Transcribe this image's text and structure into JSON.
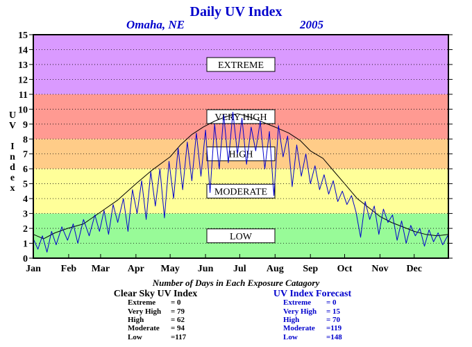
{
  "chart_data": {
    "type": "line",
    "title": "Daily UV Index",
    "subtitle_location": "Omaha, NE",
    "subtitle_year": "2005",
    "ylabel": "UV Index",
    "ylim": [
      0,
      15
    ],
    "yticks": [
      0,
      1,
      2,
      3,
      4,
      5,
      6,
      7,
      8,
      9,
      10,
      11,
      12,
      13,
      14,
      15
    ],
    "xlim": [
      1,
      365
    ],
    "months": [
      "Jan",
      "Feb",
      "Mar",
      "Apr",
      "May",
      "Jun",
      "Jul",
      "Aug",
      "Sep",
      "Oct",
      "Nov",
      "Dec"
    ],
    "month_start_day": [
      1,
      32,
      60,
      91,
      121,
      152,
      182,
      213,
      244,
      274,
      305,
      335
    ],
    "grid": "horizontal-dotted",
    "bands": [
      {
        "label": "LOW",
        "from": 0,
        "to": 3,
        "color": "#98fb98"
      },
      {
        "label": "MODERATE",
        "from": 3,
        "to": 6,
        "color": "#ffff99"
      },
      {
        "label": "HIGH",
        "from": 6,
        "to": 8,
        "color": "#ffcc88"
      },
      {
        "label": "VERY HIGH",
        "from": 8,
        "to": 11,
        "color": "#ff9a92"
      },
      {
        "label": "EXTREME",
        "from": 11,
        "to": 15,
        "color": "#da9aff"
      }
    ],
    "series": [
      {
        "name": "Clear Sky UV Index",
        "color": "#000000",
        "points": [
          [
            1,
            1.6
          ],
          [
            10,
            1.3
          ],
          [
            20,
            1.7
          ],
          [
            31,
            2.0
          ],
          [
            45,
            2.3
          ],
          [
            60,
            3.1
          ],
          [
            75,
            3.9
          ],
          [
            91,
            5.0
          ],
          [
            105,
            5.9
          ],
          [
            121,
            6.8
          ],
          [
            130,
            7.6
          ],
          [
            140,
            8.3
          ],
          [
            150,
            8.8
          ],
          [
            160,
            9.2
          ],
          [
            170,
            9.5
          ],
          [
            180,
            9.7
          ],
          [
            190,
            9.5
          ],
          [
            200,
            9.2
          ],
          [
            213,
            8.8
          ],
          [
            225,
            8.4
          ],
          [
            235,
            7.9
          ],
          [
            244,
            7.2
          ],
          [
            255,
            6.7
          ],
          [
            265,
            5.8
          ],
          [
            274,
            5.0
          ],
          [
            285,
            4.0
          ],
          [
            295,
            3.4
          ],
          [
            305,
            2.8
          ],
          [
            315,
            2.4
          ],
          [
            325,
            2.1
          ],
          [
            335,
            1.8
          ],
          [
            345,
            1.6
          ],
          [
            355,
            1.5
          ],
          [
            365,
            1.6
          ]
        ]
      },
      {
        "name": "UV Index Forecast",
        "color": "#0000cc",
        "points": [
          [
            1,
            1.3
          ],
          [
            5,
            0.6
          ],
          [
            9,
            1.5
          ],
          [
            13,
            0.4
          ],
          [
            17,
            1.8
          ],
          [
            21,
            0.9
          ],
          [
            26,
            2.1
          ],
          [
            31,
            1.2
          ],
          [
            36,
            2.3
          ],
          [
            40,
            1.0
          ],
          [
            45,
            2.6
          ],
          [
            50,
            1.5
          ],
          [
            55,
            2.9
          ],
          [
            59,
            1.8
          ],
          [
            63,
            3.2
          ],
          [
            67,
            1.6
          ],
          [
            71,
            3.6
          ],
          [
            75,
            2.4
          ],
          [
            80,
            4.0
          ],
          [
            84,
            1.8
          ],
          [
            88,
            4.6
          ],
          [
            92,
            3.0
          ],
          [
            96,
            5.2
          ],
          [
            100,
            2.6
          ],
          [
            104,
            5.8
          ],
          [
            108,
            3.5
          ],
          [
            112,
            6.0
          ],
          [
            116,
            2.7
          ],
          [
            120,
            6.5
          ],
          [
            124,
            4.0
          ],
          [
            128,
            7.4
          ],
          [
            132,
            4.6
          ],
          [
            136,
            7.8
          ],
          [
            140,
            5.2
          ],
          [
            144,
            8.4
          ],
          [
            148,
            5.5
          ],
          [
            152,
            8.6
          ],
          [
            156,
            4.4
          ],
          [
            160,
            9.0
          ],
          [
            164,
            6.0
          ],
          [
            168,
            9.6
          ],
          [
            172,
            6.4
          ],
          [
            176,
            9.8
          ],
          [
            180,
            7.0
          ],
          [
            184,
            9.4
          ],
          [
            188,
            6.3
          ],
          [
            192,
            8.8
          ],
          [
            196,
            7.2
          ],
          [
            200,
            9.2
          ],
          [
            204,
            6.0
          ],
          [
            208,
            8.5
          ],
          [
            212,
            4.2
          ],
          [
            216,
            8.9
          ],
          [
            220,
            6.8
          ],
          [
            224,
            8.2
          ],
          [
            228,
            4.8
          ],
          [
            232,
            7.6
          ],
          [
            236,
            5.5
          ],
          [
            240,
            7.0
          ],
          [
            244,
            5.0
          ],
          [
            248,
            6.2
          ],
          [
            252,
            4.6
          ],
          [
            256,
            5.6
          ],
          [
            260,
            4.3
          ],
          [
            264,
            5.2
          ],
          [
            268,
            3.8
          ],
          [
            272,
            4.5
          ],
          [
            276,
            3.6
          ],
          [
            280,
            4.2
          ],
          [
            284,
            3.1
          ],
          [
            288,
            1.4
          ],
          [
            292,
            3.8
          ],
          [
            296,
            2.6
          ],
          [
            300,
            3.5
          ],
          [
            304,
            1.6
          ],
          [
            308,
            3.3
          ],
          [
            312,
            2.4
          ],
          [
            316,
            2.9
          ],
          [
            320,
            1.2
          ],
          [
            324,
            2.5
          ],
          [
            328,
            1.0
          ],
          [
            332,
            2.2
          ],
          [
            336,
            1.5
          ],
          [
            340,
            2.0
          ],
          [
            344,
            0.8
          ],
          [
            348,
            1.9
          ],
          [
            352,
            1.1
          ],
          [
            356,
            1.7
          ],
          [
            360,
            0.9
          ],
          [
            365,
            1.6
          ]
        ]
      }
    ]
  },
  "counts_caption": "Number of Days in Each Exposure Catagory",
  "summary": [
    {
      "title": "Clear Sky UV Index",
      "color": "#000000",
      "rows": [
        {
          "label": "Extreme",
          "value": "=   0"
        },
        {
          "label": "Very High",
          "value": "= 79"
        },
        {
          "label": "High",
          "value": "= 62"
        },
        {
          "label": "Moderate",
          "value": "= 94"
        },
        {
          "label": "Low",
          "value": "=117"
        }
      ]
    },
    {
      "title": "UV Index Forecast",
      "color": "#0000cc",
      "rows": [
        {
          "label": "Extreme",
          "value": "=   0"
        },
        {
          "label": "Very High",
          "value": "= 15"
        },
        {
          "label": "High",
          "value": "= 70"
        },
        {
          "label": "Moderate",
          "value": "=119"
        },
        {
          "label": "Low",
          "value": "=148"
        }
      ]
    }
  ]
}
